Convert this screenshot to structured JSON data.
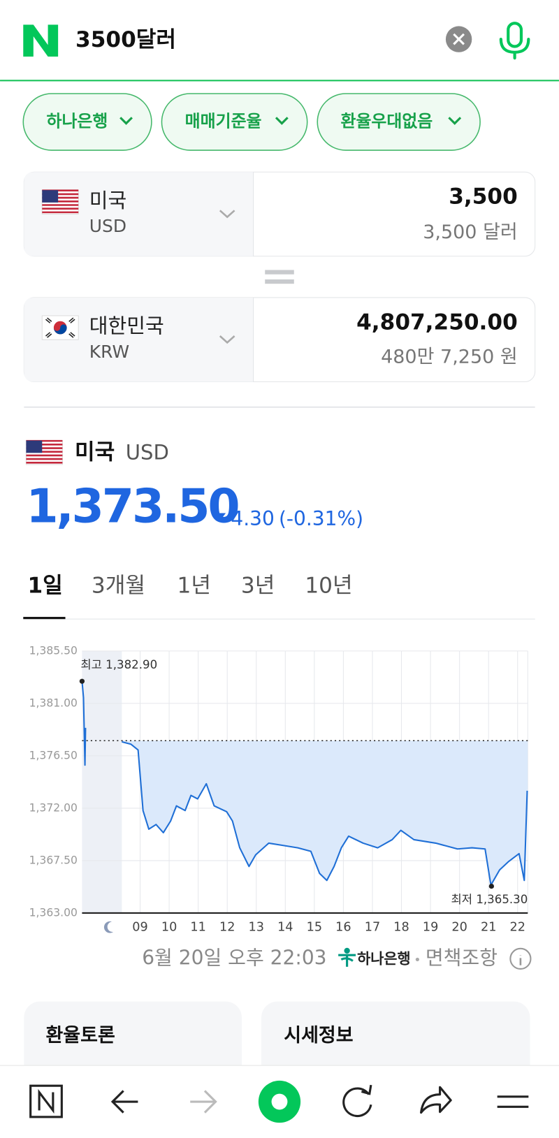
{
  "search": {
    "query": "3500달러"
  },
  "filters": [
    "하나은행",
    "매매기준율",
    "환율우대없음"
  ],
  "converter": {
    "from": {
      "country": "미국",
      "code": "USD",
      "amount": "3,500",
      "amount_words": "3,500 달러"
    },
    "to": {
      "country": "대한민국",
      "code": "KRW",
      "amount": "4,807,250.00",
      "amount_words": "480만 7,250 원"
    }
  },
  "rate": {
    "country": "미국",
    "code": "USD",
    "price": "1,373.50",
    "change": "4.30",
    "change_pct": "(-0.31%)"
  },
  "tabs": [
    "1일",
    "3개월",
    "1년",
    "3년",
    "10년"
  ],
  "chart_data": {
    "type": "line",
    "x": [
      7.0,
      7.05,
      7.1,
      7.12,
      null,
      8.37,
      8.68,
      8.93,
      9.1,
      9.3,
      9.55,
      9.8,
      10.05,
      10.25,
      10.55,
      10.75,
      10.98,
      11.28,
      11.55,
      11.98,
      12.18,
      12.43,
      12.75,
      12.98,
      13.43,
      13.93,
      14.43,
      14.88,
      15.18,
      15.43,
      15.68,
      15.93,
      16.18,
      16.68,
      17.18,
      17.68,
      17.98,
      18.43,
      19.18,
      19.93,
      20.43,
      20.88,
      21.08,
      21.38,
      21.68,
      22.05,
      22.23,
      22.33
    ],
    "values": [
      1382.9,
      1381.5,
      1375.7,
      1378.9,
      null,
      1377.7,
      1377.5,
      1377.0,
      1371.8,
      1370.2,
      1370.6,
      1369.9,
      1370.9,
      1372.2,
      1371.8,
      1373.1,
      1372.8,
      1374.1,
      1372.2,
      1371.7,
      1370.9,
      1368.6,
      1367.0,
      1368.0,
      1369.0,
      1368.8,
      1368.6,
      1368.3,
      1366.4,
      1365.8,
      1367.0,
      1368.6,
      1369.6,
      1369.0,
      1368.6,
      1369.3,
      1370.1,
      1369.3,
      1369.0,
      1368.5,
      1368.6,
      1368.5,
      1365.4,
      1366.7,
      1367.4,
      1368.1,
      1365.8,
      1373.5
    ],
    "color": "#1f6fd6",
    "area_color": "#dbe9fb",
    "xlim": [
      7,
      22.35
    ],
    "ylim": [
      1363,
      1385.5
    ],
    "xticks": [
      {
        "value": 9,
        "label": "09"
      },
      10,
      11,
      12,
      13,
      14,
      15,
      16,
      17,
      18,
      19,
      20,
      21,
      22
    ],
    "yticks": [
      {
        "value": 1385.5,
        "label": "1,385.50"
      },
      {
        "value": 1381,
        "label": "1,381.00"
      },
      {
        "value": 1376.5,
        "label": "1,376.50"
      },
      {
        "value": 1372,
        "label": "1,372.00"
      },
      {
        "value": 1367.5,
        "label": "1,367.50"
      },
      {
        "value": 1363,
        "label": "1,363.00"
      }
    ],
    "grid": true,
    "reference_line": 1377.8,
    "night_shade": [
      7,
      8.37
    ],
    "annotations": [
      {
        "text": "최고 1,382.90",
        "x": 7.0,
        "y": 1382.9
      },
      {
        "text": "최저 1,365.30",
        "x": 21.1,
        "y": 1365.3
      }
    ]
  },
  "footer": {
    "timestamp": "6월 20일 오후 22:03",
    "source": "하나은행",
    "disclaimer": "면책조항"
  },
  "cards": [
    "환율토론",
    "시세정보"
  ]
}
